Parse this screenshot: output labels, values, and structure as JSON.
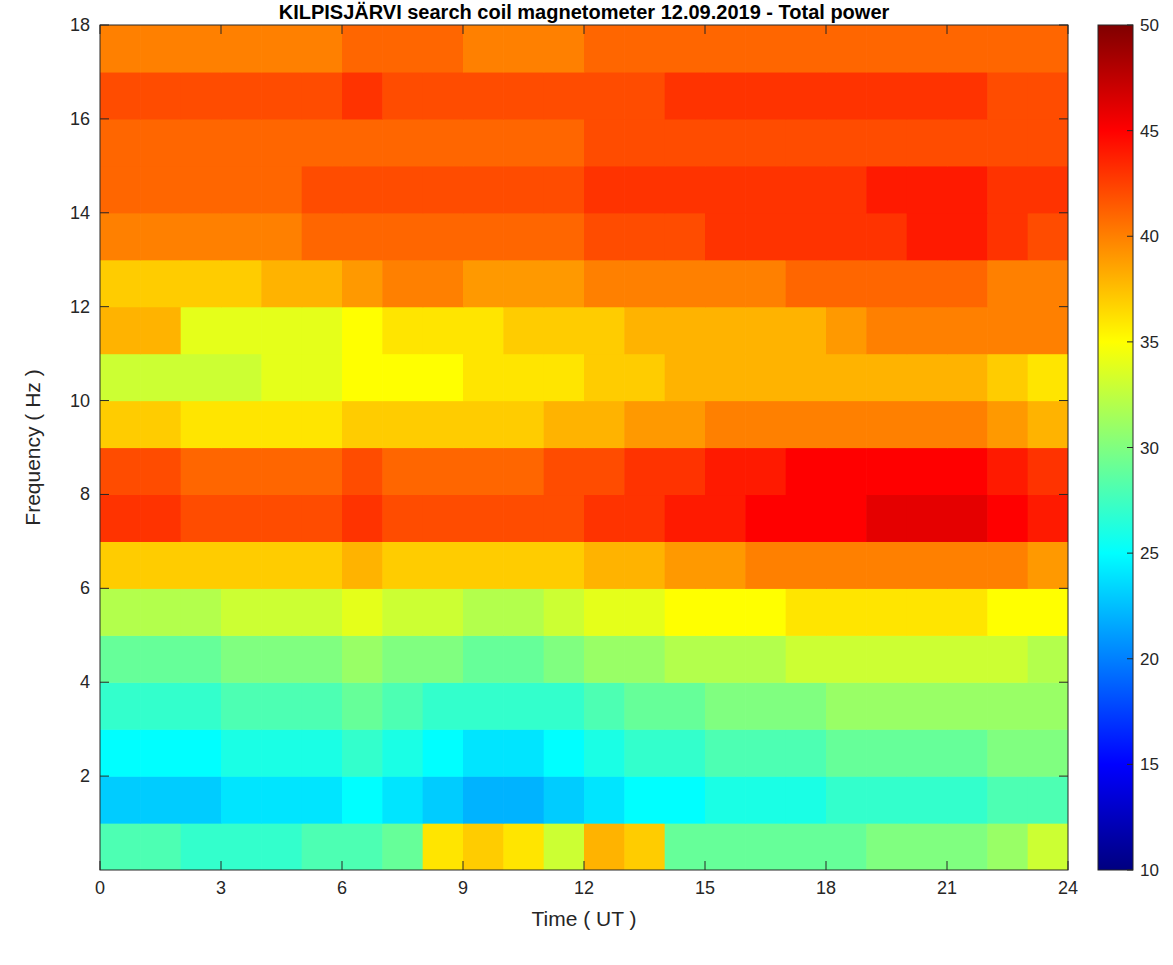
{
  "chart_data": {
    "type": "heatmap",
    "title": "KILPISJÄRVI search coil magnetometer 12.09.2019 - Total power",
    "x_label": "Time ( UT )",
    "y_label": "Frequency ( Hz )",
    "xlim": [
      0,
      24
    ],
    "xticks": [
      0,
      3,
      6,
      9,
      12,
      15,
      18,
      21,
      24
    ],
    "ylim": [
      0,
      18
    ],
    "yticks": [
      2,
      4,
      6,
      8,
      10,
      12,
      14,
      16,
      18
    ],
    "x_edges": [
      0,
      1,
      2,
      3,
      4,
      5,
      6,
      7,
      8,
      9,
      10,
      11,
      12,
      13,
      14,
      15,
      16,
      17,
      18,
      19,
      20,
      21,
      22,
      23,
      24
    ],
    "y_edges": [
      0,
      1,
      2,
      3,
      4,
      5,
      6,
      7,
      8,
      9,
      10,
      11,
      12,
      13,
      14,
      15,
      16,
      17,
      18
    ],
    "cells": [
      [
        28,
        28,
        27,
        27,
        27,
        28,
        28,
        29,
        36,
        37,
        36,
        33,
        38,
        37,
        29,
        29,
        29,
        29,
        29,
        30,
        30,
        30,
        31,
        33
      ],
      [
        23,
        23,
        23,
        24,
        24,
        24,
        25,
        24,
        23,
        22,
        22,
        23,
        24,
        25,
        25,
        26,
        26,
        26,
        27,
        27,
        27,
        27,
        28,
        28
      ],
      [
        25,
        25,
        25,
        26,
        26,
        26,
        27,
        26,
        25,
        24,
        24,
        25,
        26,
        27,
        27,
        28,
        28,
        28,
        29,
        29,
        29,
        29,
        30,
        30
      ],
      [
        27,
        27,
        27,
        28,
        28,
        28,
        29,
        28,
        27,
        27,
        27,
        27,
        28,
        29,
        29,
        30,
        30,
        30,
        31,
        31,
        31,
        31,
        31,
        31
      ],
      [
        29,
        29,
        29,
        30,
        30,
        30,
        31,
        30,
        30,
        29,
        29,
        30,
        31,
        31,
        32,
        32,
        32,
        33,
        33,
        33,
        33,
        33,
        33,
        32
      ],
      [
        32,
        32,
        32,
        33,
        33,
        33,
        34,
        33,
        33,
        32,
        32,
        33,
        34,
        34,
        35,
        35,
        35,
        36,
        36,
        36,
        36,
        36,
        35,
        35
      ],
      [
        37,
        37,
        37,
        37,
        37,
        37,
        38,
        37,
        37,
        37,
        37,
        37,
        38,
        38,
        39,
        39,
        40,
        40,
        40,
        40,
        40,
        40,
        40,
        39
      ],
      [
        43,
        43,
        42,
        42,
        42,
        42,
        43,
        42,
        42,
        42,
        42,
        42,
        43,
        43,
        44,
        44,
        45,
        45,
        45,
        46,
        46,
        46,
        45,
        44
      ],
      [
        42,
        42,
        41,
        41,
        41,
        41,
        42,
        41,
        41,
        41,
        41,
        42,
        42,
        43,
        43,
        44,
        44,
        45,
        45,
        45,
        45,
        45,
        44,
        43
      ],
      [
        37,
        37,
        36,
        36,
        36,
        36,
        37,
        37,
        37,
        37,
        37,
        38,
        38,
        39,
        39,
        40,
        40,
        40,
        40,
        40,
        40,
        40,
        39,
        38
      ],
      [
        33,
        33,
        33,
        33,
        34,
        34,
        35,
        35,
        35,
        36,
        36,
        36,
        37,
        37,
        38,
        38,
        38,
        38,
        38,
        38,
        38,
        38,
        37,
        36
      ],
      [
        38,
        38,
        34,
        34,
        34,
        34,
        35,
        36,
        36,
        36,
        37,
        37,
        37,
        38,
        38,
        38,
        38,
        38,
        39,
        40,
        40,
        40,
        40,
        40
      ],
      [
        37,
        37,
        37,
        37,
        38,
        38,
        39,
        40,
        40,
        39,
        39,
        39,
        40,
        40,
        40,
        40,
        40,
        41,
        41,
        41,
        41,
        41,
        40,
        40
      ],
      [
        40,
        40,
        40,
        40,
        40,
        41,
        41,
        41,
        41,
        41,
        41,
        41,
        42,
        42,
        42,
        43,
        43,
        43,
        43,
        43,
        44,
        44,
        43,
        42
      ],
      [
        41,
        41,
        41,
        41,
        41,
        42,
        42,
        42,
        42,
        42,
        42,
        42,
        43,
        43,
        43,
        43,
        43,
        43,
        43,
        44,
        44,
        44,
        43,
        43
      ],
      [
        41,
        41,
        41,
        41,
        41,
        41,
        41,
        41,
        41,
        41,
        41,
        41,
        42,
        42,
        42,
        42,
        42,
        42,
        42,
        42,
        42,
        42,
        42,
        42
      ],
      [
        42,
        42,
        42,
        42,
        42,
        42,
        43,
        42,
        42,
        42,
        42,
        42,
        42,
        42,
        43,
        43,
        43,
        43,
        43,
        43,
        43,
        43,
        42,
        42
      ],
      [
        40,
        40,
        40,
        40,
        40,
        40,
        41,
        41,
        41,
        40,
        40,
        40,
        41,
        41,
        41,
        41,
        41,
        41,
        41,
        41,
        41,
        41,
        41,
        41
      ]
    ],
    "clim": [
      10,
      50
    ],
    "cticks": [
      10,
      15,
      20,
      25,
      30,
      35,
      40,
      45,
      50
    ]
  }
}
